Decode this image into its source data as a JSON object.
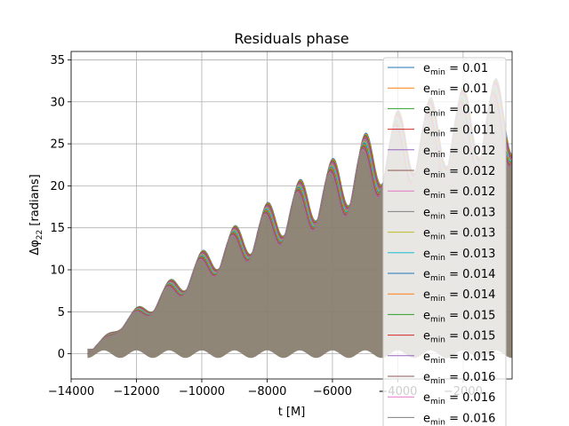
{
  "chart_data": {
    "type": "line",
    "title": "Residuals phase",
    "xlabel": "t [M]",
    "ylabel": "Δφ22 [radians]",
    "ylabel_main": "Δφ",
    "ylabel_sub": "22",
    "ylabel_suffix": " [radians]",
    "xlim": [
      -14000,
      -500
    ],
    "ylim": [
      -3,
      36
    ],
    "xticks": [
      -14000,
      -12000,
      -10000,
      -8000,
      -6000,
      -4000,
      -2000
    ],
    "xtick_labels": [
      "−14000",
      "−12000",
      "−10000",
      "−8000",
      "−6000",
      "−4000",
      "−2000"
    ],
    "yticks": [
      0,
      5,
      10,
      15,
      20,
      25,
      30,
      35
    ],
    "ytick_labels": [
      "0",
      "5",
      "10",
      "15",
      "20",
      "25",
      "30",
      "35"
    ],
    "grid": true,
    "legend_position": "upper-right",
    "x_start": -13500,
    "oscillation_period": 1000,
    "upper_envelope": {
      "x": [
        -13500,
        -12500,
        -11500,
        -10500,
        -9500,
        -8500,
        -7500,
        -6500,
        -5500,
        -4500,
        -3500,
        -2500,
        -1500,
        -600
      ],
      "y": [
        0,
        4,
        7,
        10.5,
        14,
        16.5,
        19.5,
        22,
        24.5,
        28,
        30,
        31,
        32.5,
        33
      ]
    },
    "series": [
      {
        "name": "e",
        "name_sub": "min",
        "name_value": " = 0.01",
        "color": "#1f77b4"
      },
      {
        "name": "e",
        "name_sub": "min",
        "name_value": " = 0.01",
        "color": "#ff7f0e"
      },
      {
        "name": "e",
        "name_sub": "min",
        "name_value": " = 0.011",
        "color": "#2ca02c"
      },
      {
        "name": "e",
        "name_sub": "min",
        "name_value": " = 0.011",
        "color": "#d62728"
      },
      {
        "name": "e",
        "name_sub": "min",
        "name_value": " = 0.012",
        "color": "#9467bd"
      },
      {
        "name": "e",
        "name_sub": "min",
        "name_value": " = 0.012",
        "color": "#8c564b"
      },
      {
        "name": "e",
        "name_sub": "min",
        "name_value": " = 0.012",
        "color": "#e377c2"
      },
      {
        "name": "e",
        "name_sub": "min",
        "name_value": " = 0.013",
        "color": "#7f7f7f"
      },
      {
        "name": "e",
        "name_sub": "min",
        "name_value": " = 0.013",
        "color": "#bcbd22"
      },
      {
        "name": "e",
        "name_sub": "min",
        "name_value": " = 0.013",
        "color": "#17becf"
      },
      {
        "name": "e",
        "name_sub": "min",
        "name_value": " = 0.014",
        "color": "#1f77b4"
      },
      {
        "name": "e",
        "name_sub": "min",
        "name_value": " = 0.014",
        "color": "#ff7f0e"
      },
      {
        "name": "e",
        "name_sub": "min",
        "name_value": " = 0.015",
        "color": "#2ca02c"
      },
      {
        "name": "e",
        "name_sub": "min",
        "name_value": " = 0.015",
        "color": "#d62728"
      },
      {
        "name": "e",
        "name_sub": "min",
        "name_value": " = 0.015",
        "color": "#9467bd"
      },
      {
        "name": "e",
        "name_sub": "min",
        "name_value": " = 0.016",
        "color": "#8c564b"
      },
      {
        "name": "e",
        "name_sub": "min",
        "name_value": " = 0.016",
        "color": "#e377c2"
      },
      {
        "name": "e",
        "name_sub": "min",
        "name_value": " = 0.016",
        "color": "#7f7f7f"
      }
    ],
    "fill_color": "#8a7f70"
  }
}
